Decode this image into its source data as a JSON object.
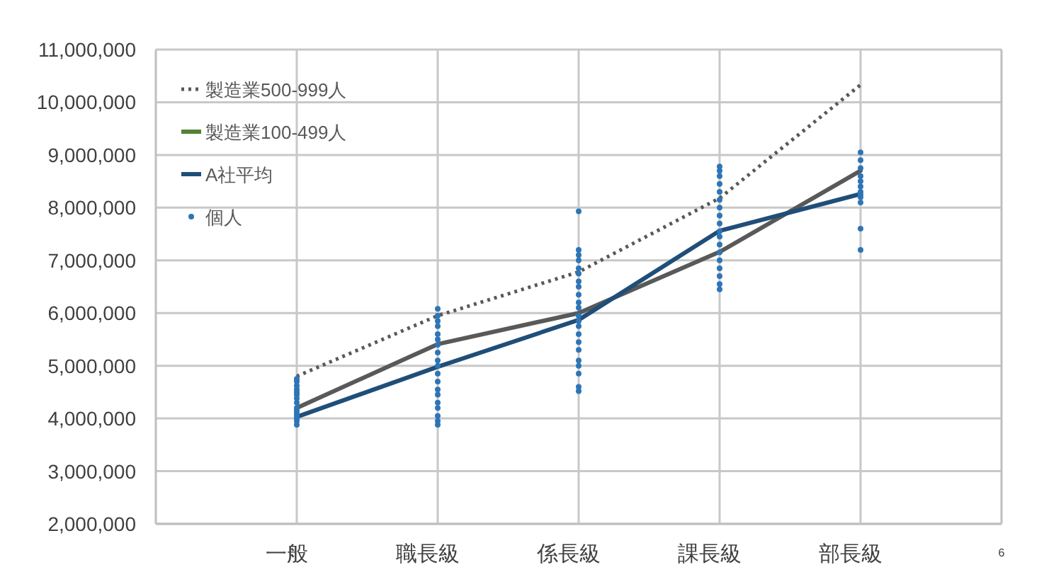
{
  "chart_data": {
    "type": "line",
    "categories": [
      null,
      "一般",
      "職長級",
      "係長級",
      "課長級",
      "部長級",
      "6"
    ],
    "ylim": [
      2000000,
      11000000
    ],
    "yticks": [
      {
        "value": 2000000,
        "label": "2,000,000"
      },
      {
        "value": 3000000,
        "label": "3,000,000"
      },
      {
        "value": 4000000,
        "label": "4,000,000"
      },
      {
        "value": 5000000,
        "label": "5,000,000"
      },
      {
        "value": 6000000,
        "label": "6,000,000"
      },
      {
        "value": 7000000,
        "label": "7,000,000"
      },
      {
        "value": 8000000,
        "label": "8,000,000"
      },
      {
        "value": 9000000,
        "label": "9,000,000"
      },
      {
        "value": 10000000,
        "label": "10,000,000"
      },
      {
        "value": 11000000,
        "label": "11,000,000"
      }
    ],
    "grid": true,
    "legend": "top left",
    "series": [
      {
        "name": "製造業500-999人",
        "color": "#595959",
        "line_style": "dotted",
        "values": [
          null,
          4800000,
          5950000,
          6780000,
          8180000,
          10330000,
          null
        ]
      },
      {
        "name": "製造業100-499人",
        "color": "#548235",
        "line_style": "solid",
        "values": [
          null,
          null,
          null,
          null,
          null,
          null,
          null
        ]
      },
      {
        "color": "#595959",
        "line_style": "solid",
        "values": [
          null,
          4200000,
          5410000,
          6000000,
          7160000,
          8700000,
          null
        ]
      },
      {
        "name": "A社平均",
        "color": "#1f4e79",
        "line_style": "solid",
        "values": [
          null,
          4030000,
          4980000,
          5870000,
          7560000,
          8260000,
          null
        ]
      },
      {
        "name": "個人",
        "type": "scatter",
        "color": "#2e75b6",
        "marker": "circle",
        "x": [
          "一般",
          "一般",
          "一般",
          "一般",
          "一般",
          "一般",
          "一般",
          "一般",
          "一般",
          "一般",
          "一般",
          "一般",
          "一般",
          "一般",
          "一般",
          "職長級",
          "職長級",
          "職長級",
          "職長級",
          "職長級",
          "職長級",
          "職長級",
          "職長級",
          "職長級",
          "職長級",
          "職長級",
          "職長級",
          "職長級",
          "職長級",
          "職長級",
          "職長級",
          "職長級",
          "職長級",
          "職長級",
          "係長級",
          "係長級",
          "係長級",
          "係長級",
          "係長級",
          "係長級",
          "係長級",
          "係長級",
          "係長級",
          "係長級",
          "係長級",
          "係長級",
          "係長級",
          "係長級",
          "係長級",
          "係長級",
          "係長級",
          "係長級",
          "係長級",
          "係長級",
          "係長級",
          "係長級",
          "課長級",
          "課長級",
          "課長級",
          "課長級",
          "課長級",
          "課長級",
          "課長級",
          "課長級",
          "課長級",
          "課長級",
          "課長級",
          "課長級",
          "課長級",
          "課長級",
          "課長級",
          "課長級",
          "課長級",
          "課長級",
          "部長級",
          "部長級",
          "部長級",
          "部長級",
          "部長級",
          "部長級",
          "部長級",
          "部長級",
          "部長級",
          "部長級",
          "部長級",
          "部長級"
        ],
        "values": [
          3880000,
          3950000,
          4000000,
          4050000,
          4100000,
          4150000,
          4200000,
          4300000,
          4380000,
          4450000,
          4500000,
          4550000,
          4620000,
          4700000,
          4750000,
          3880000,
          3950000,
          4050000,
          4200000,
          4300000,
          4450000,
          4550000,
          4700000,
          4850000,
          5000000,
          5100000,
          5250000,
          5400000,
          5500000,
          5600000,
          5750000,
          5850000,
          5950000,
          6080000,
          4520000,
          4600000,
          4850000,
          5000000,
          5100000,
          5300000,
          5450000,
          5600000,
          5750000,
          5850000,
          5950000,
          6100000,
          6200000,
          6350000,
          6500000,
          6600000,
          6750000,
          6850000,
          7000000,
          7100000,
          7200000,
          7930000,
          6450000,
          6550000,
          6700000,
          6850000,
          7000000,
          7150000,
          7300000,
          7450000,
          7550000,
          7700000,
          7850000,
          8000000,
          8150000,
          8300000,
          8450000,
          8600000,
          8700000,
          8780000,
          7200000,
          7600000,
          8100000,
          8200000,
          8250000,
          8300000,
          8400000,
          8500000,
          8600000,
          8750000,
          8900000,
          9050000
        ]
      }
    ]
  }
}
